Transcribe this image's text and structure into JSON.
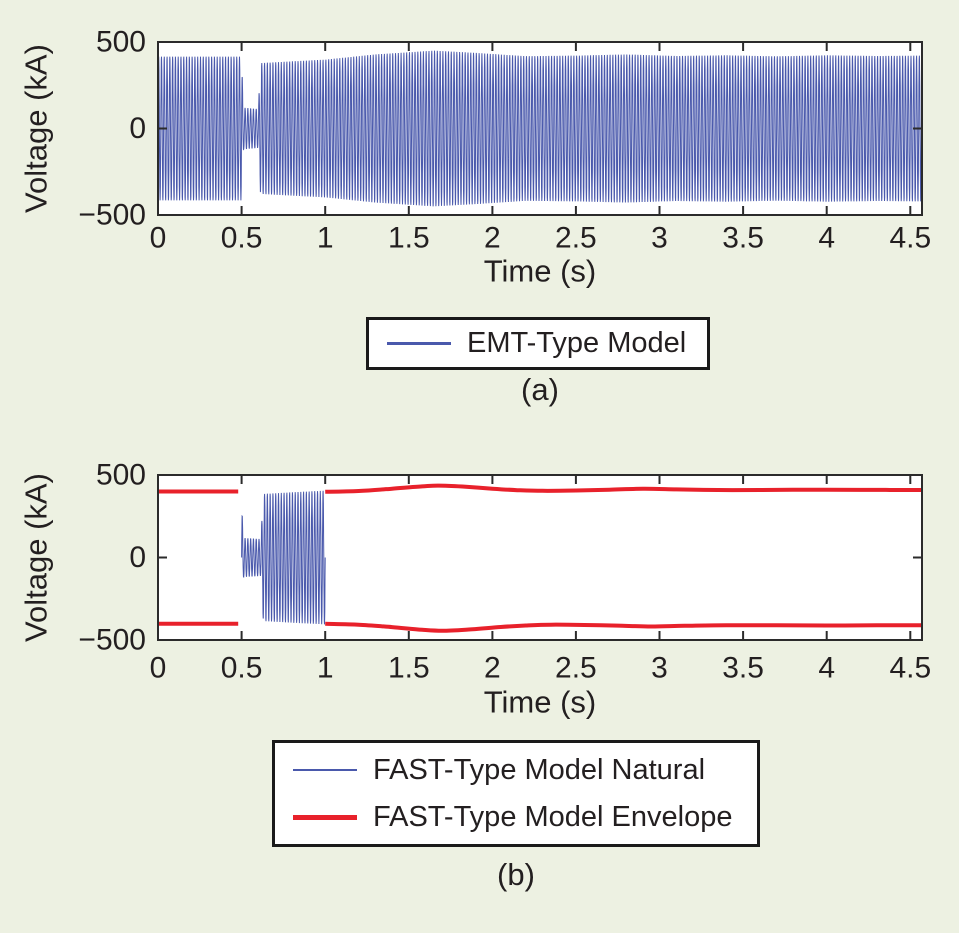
{
  "figure": {
    "background_color": "#edf1e2",
    "plot_background_color": "#ffffff",
    "axis_color": "#2b2b2b",
    "text_color": "#231f20",
    "blue_color": "#4a59ac",
    "red_color": "#e8212b"
  },
  "captions": {
    "a": "(a)",
    "b": "(b)"
  },
  "legend_a": {
    "entries": [
      {
        "label": "EMT-Type Model",
        "color": "#4a59ac",
        "weight": 2.5
      }
    ]
  },
  "legend_b": {
    "entries": [
      {
        "label": "FAST-Type Model Natural",
        "color": "#4a59ac",
        "weight": 2.5
      },
      {
        "label": "FAST-Type Model Envelope",
        "color": "#e8212b",
        "weight": 5
      }
    ]
  },
  "chart_data": [
    {
      "id": "a",
      "type": "line",
      "title": "",
      "xlabel": "Time (s)",
      "ylabel": "Voltage (kA)",
      "xlim": [
        0,
        4.57
      ],
      "ylim": [
        -500,
        500
      ],
      "xticks": [
        0,
        0.5,
        1,
        1.5,
        2,
        2.5,
        3,
        3.5,
        4,
        4.5
      ],
      "xtick_labels": [
        "0",
        "0.5",
        "1",
        "1.5",
        "2",
        "2.5",
        "3",
        "3.5",
        "4",
        "4.5"
      ],
      "yticks": [
        500,
        0,
        -500
      ],
      "ytick_labels": [
        "500",
        "0",
        "−500"
      ],
      "grid": false,
      "legend_position": "below",
      "series": [
        {
          "name": "EMT-Type Model",
          "kind": "modulated-sine",
          "color": "#4a59ac",
          "width": 1,
          "frequency_hz": 60,
          "range": [
            0,
            4.57
          ],
          "envelope": [
            [
              0,
              415
            ],
            [
              0.5,
              415
            ],
            [
              0.503,
              320
            ],
            [
              0.512,
              120
            ],
            [
              0.6,
              112
            ],
            [
              0.613,
              378
            ],
            [
              0.8,
              388
            ],
            [
              1.0,
              398
            ],
            [
              1.3,
              428
            ],
            [
              1.65,
              450
            ],
            [
              1.9,
              437
            ],
            [
              2.2,
              418
            ],
            [
              2.5,
              421
            ],
            [
              2.8,
              428
            ],
            [
              3.1,
              419
            ],
            [
              3.4,
              423
            ],
            [
              3.7,
              417
            ],
            [
              4.0,
              423
            ],
            [
              4.3,
              419
            ],
            [
              4.57,
              421
            ]
          ]
        }
      ]
    },
    {
      "id": "b",
      "type": "line",
      "title": "",
      "xlabel": "Time (s)",
      "ylabel": "Voltage (kA)",
      "xlim": [
        0,
        4.57
      ],
      "ylim": [
        -500,
        500
      ],
      "xticks": [
        0,
        0.5,
        1,
        1.5,
        2,
        2.5,
        3,
        3.5,
        4,
        4.5
      ],
      "xtick_labels": [
        "0",
        "0.5",
        "1",
        "1.5",
        "2",
        "2.5",
        "3",
        "3.5",
        "4",
        "4.5"
      ],
      "yticks": [
        500,
        0,
        -500
      ],
      "ytick_labels": [
        "500",
        "0",
        "−500"
      ],
      "grid": false,
      "legend_position": "below",
      "series": [
        {
          "name": "FAST-Type Model Natural",
          "kind": "modulated-sine",
          "color": "#4a59ac",
          "width": 1,
          "frequency_hz": 60,
          "range": [
            0.5,
            1.0
          ],
          "envelope": [
            [
              0.5,
              320
            ],
            [
              0.512,
              118
            ],
            [
              0.615,
              112
            ],
            [
              0.63,
              385
            ],
            [
              0.8,
              395
            ],
            [
              1.0,
              405
            ]
          ]
        },
        {
          "name": "FAST-Type Model Envelope",
          "kind": "curve",
          "color": "#e8212b",
          "width": 4,
          "segments": [
            [
              [
                0,
                400
              ],
              [
                0.48,
                400
              ]
            ],
            [
              [
                1.0,
                398
              ],
              [
                1.2,
                403
              ],
              [
                1.4,
                417
              ],
              [
                1.58,
                431
              ],
              [
                1.68,
                436
              ],
              [
                1.82,
                430
              ],
              [
                2.0,
                417
              ],
              [
                2.15,
                408
              ],
              [
                2.3,
                404
              ],
              [
                2.5,
                406
              ],
              [
                2.7,
                411
              ],
              [
                2.9,
                417
              ],
              [
                3.1,
                413
              ],
              [
                3.35,
                409
              ],
              [
                3.6,
                409
              ],
              [
                3.9,
                411
              ],
              [
                4.2,
                410
              ],
              [
                4.57,
                409
              ]
            ],
            [
              [
                0,
                -402
              ],
              [
                0.48,
                -402
              ]
            ],
            [
              [
                1.0,
                -402
              ],
              [
                1.2,
                -407
              ],
              [
                1.4,
                -422
              ],
              [
                1.58,
                -438
              ],
              [
                1.7,
                -444
              ],
              [
                1.85,
                -437
              ],
              [
                2.05,
                -421
              ],
              [
                2.2,
                -412
              ],
              [
                2.35,
                -407
              ],
              [
                2.55,
                -409
              ],
              [
                2.75,
                -413
              ],
              [
                2.95,
                -418
              ],
              [
                3.15,
                -414
              ],
              [
                3.4,
                -410
              ],
              [
                3.7,
                -411
              ],
              [
                4.0,
                -412
              ],
              [
                4.3,
                -411
              ],
              [
                4.57,
                -411
              ]
            ]
          ]
        }
      ]
    }
  ]
}
